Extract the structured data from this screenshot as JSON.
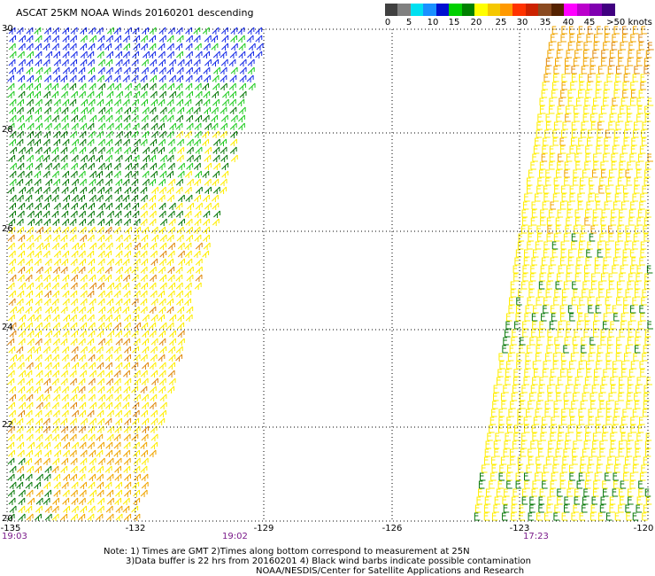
{
  "title": "ASCAT 25KM NOAA Winds 20160201 descending",
  "legend": {
    "colors": [
      "#404040",
      "#808080",
      "#00e0f0",
      "#1a90ff",
      "#0010d0",
      "#00d000",
      "#008000",
      "#ffff00",
      "#f5c800",
      "#ff9900",
      "#ff3300",
      "#cc2200",
      "#8a4a20",
      "#552200",
      "#ff00ff",
      "#bb00cc",
      "#8000b0",
      "#400080"
    ],
    "labels": [
      "0",
      "5",
      "10",
      "15",
      "20",
      "25",
      "30",
      "35",
      "40",
      "45",
      ">50 knots"
    ]
  },
  "axes": {
    "y_ticks": [
      "30",
      "28",
      "26",
      "24",
      "22",
      "20"
    ],
    "x_ticks": [
      "-135",
      "-132",
      "-129",
      "-126",
      "-123",
      "-120"
    ]
  },
  "times": [
    "19:03",
    "19:02",
    "17:23"
  ],
  "notes": [
    "Note: 1) Times are GMT 2)Times along bottom correspond to measurement at 25N",
    "3)Data buffer is 22 hrs from 20160201 4) Black wind barbs indicate possible contamination",
    "NOAA/NESDIS/Center for Satellite Applications and Research"
  ],
  "swaths": [
    {
      "name": "west-swath",
      "bands": [
        "blue",
        "green",
        "dark-green",
        "yellow",
        "orange",
        "dark-green"
      ]
    },
    {
      "name": "east-swath",
      "bands": [
        "orange",
        "yellow",
        "dark-green"
      ]
    }
  ]
}
